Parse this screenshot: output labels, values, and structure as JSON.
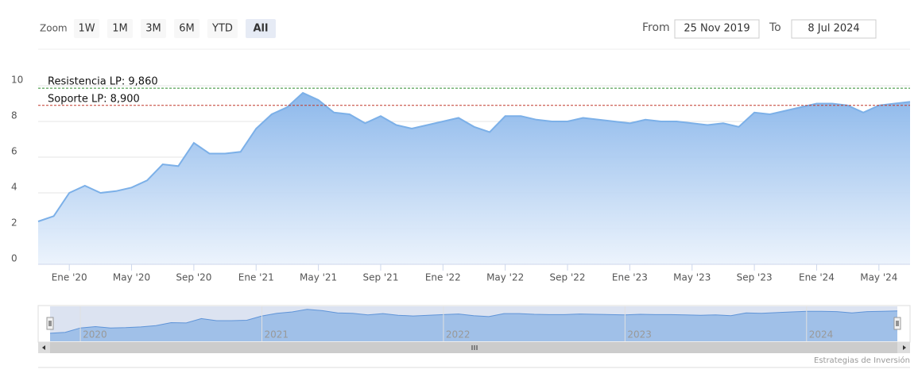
{
  "chart_data": {
    "type": "area",
    "x": [
      "2019-11",
      "2019-12",
      "2020-01",
      "2020-02",
      "2020-03",
      "2020-04",
      "2020-05",
      "2020-06",
      "2020-07",
      "2020-08",
      "2020-09",
      "2020-10",
      "2020-11",
      "2020-12",
      "2021-01",
      "2021-02",
      "2021-03",
      "2021-04",
      "2021-05",
      "2021-06",
      "2021-07",
      "2021-08",
      "2021-09",
      "2021-10",
      "2021-11",
      "2021-12",
      "2022-01",
      "2022-02",
      "2022-03",
      "2022-04",
      "2022-05",
      "2022-06",
      "2022-07",
      "2022-08",
      "2022-09",
      "2022-10",
      "2022-11",
      "2022-12",
      "2023-01",
      "2023-02",
      "2023-03",
      "2023-04",
      "2023-05",
      "2023-06",
      "2023-07",
      "2023-08",
      "2023-09",
      "2023-10",
      "2023-11",
      "2023-12",
      "2024-01",
      "2024-02",
      "2024-03",
      "2024-04",
      "2024-05",
      "2024-06",
      "2024-07"
    ],
    "values": [
      2.4,
      2.7,
      4.0,
      4.4,
      4.0,
      4.1,
      4.3,
      4.7,
      5.6,
      5.5,
      6.8,
      6.2,
      6.2,
      6.3,
      7.6,
      8.4,
      8.8,
      9.6,
      9.2,
      8.5,
      8.4,
      7.9,
      8.3,
      7.8,
      7.6,
      7.8,
      8.0,
      8.2,
      7.7,
      7.4,
      8.3,
      8.3,
      8.1,
      8.0,
      8.0,
      8.2,
      8.1,
      8.0,
      7.9,
      8.1,
      8.0,
      8.0,
      7.9,
      7.8,
      7.9,
      7.7,
      8.5,
      8.4,
      8.6,
      8.8,
      9.0,
      9.0,
      8.9,
      8.5,
      8.9,
      9.0,
      9.1
    ],
    "color": "#7cb0e8",
    "xlim": [
      "2019-11",
      "2024-07"
    ],
    "xticks": [
      {
        "value": "2020-01",
        "label": "Ene '20"
      },
      {
        "value": "2020-05",
        "label": "May '20"
      },
      {
        "value": "2020-09",
        "label": "Sep '20"
      },
      {
        "value": "2021-01",
        "label": "Ene '21"
      },
      {
        "value": "2021-05",
        "label": "May '21"
      },
      {
        "value": "2021-09",
        "label": "Sep '21"
      },
      {
        "value": "2022-01",
        "label": "Ene '22"
      },
      {
        "value": "2022-05",
        "label": "May '22"
      },
      {
        "value": "2022-09",
        "label": "Sep '22"
      },
      {
        "value": "2023-01",
        "label": "Ene '23"
      },
      {
        "value": "2023-05",
        "label": "May '23"
      },
      {
        "value": "2023-09",
        "label": "Sep '23"
      },
      {
        "value": "2024-01",
        "label": "Ene '24"
      },
      {
        "value": "2024-05",
        "label": "May '24"
      }
    ],
    "ylim": [
      0,
      10
    ],
    "yticks": [
      0,
      2,
      4,
      6,
      8,
      10
    ],
    "grid": true,
    "plot_lines": [
      {
        "value": 9.86,
        "label": "Resistencia LP: 9,860",
        "color": "#2e8b2e"
      },
      {
        "value": 8.9,
        "label": "Soporte LP: 8,900",
        "color": "#c0392b"
      }
    ],
    "navigator": {
      "xticks": [
        {
          "value": "2020-01",
          "label": "2020"
        },
        {
          "value": "2021-01",
          "label": "2021"
        },
        {
          "value": "2022-01",
          "label": "2022"
        },
        {
          "value": "2023-01",
          "label": "2023"
        },
        {
          "value": "2024-01",
          "label": "2024"
        }
      ]
    },
    "range_selector": {
      "zoom_label": "Zoom",
      "buttons": [
        "1W",
        "1M",
        "3M",
        "6M",
        "YTD",
        "All"
      ],
      "selected": 5
    },
    "date_inputs": {
      "from_label": "From",
      "from": "25 Nov 2019",
      "to_label": "To",
      "to": "8 Jul 2024"
    },
    "credits": "Estrategias de Inversión"
  }
}
